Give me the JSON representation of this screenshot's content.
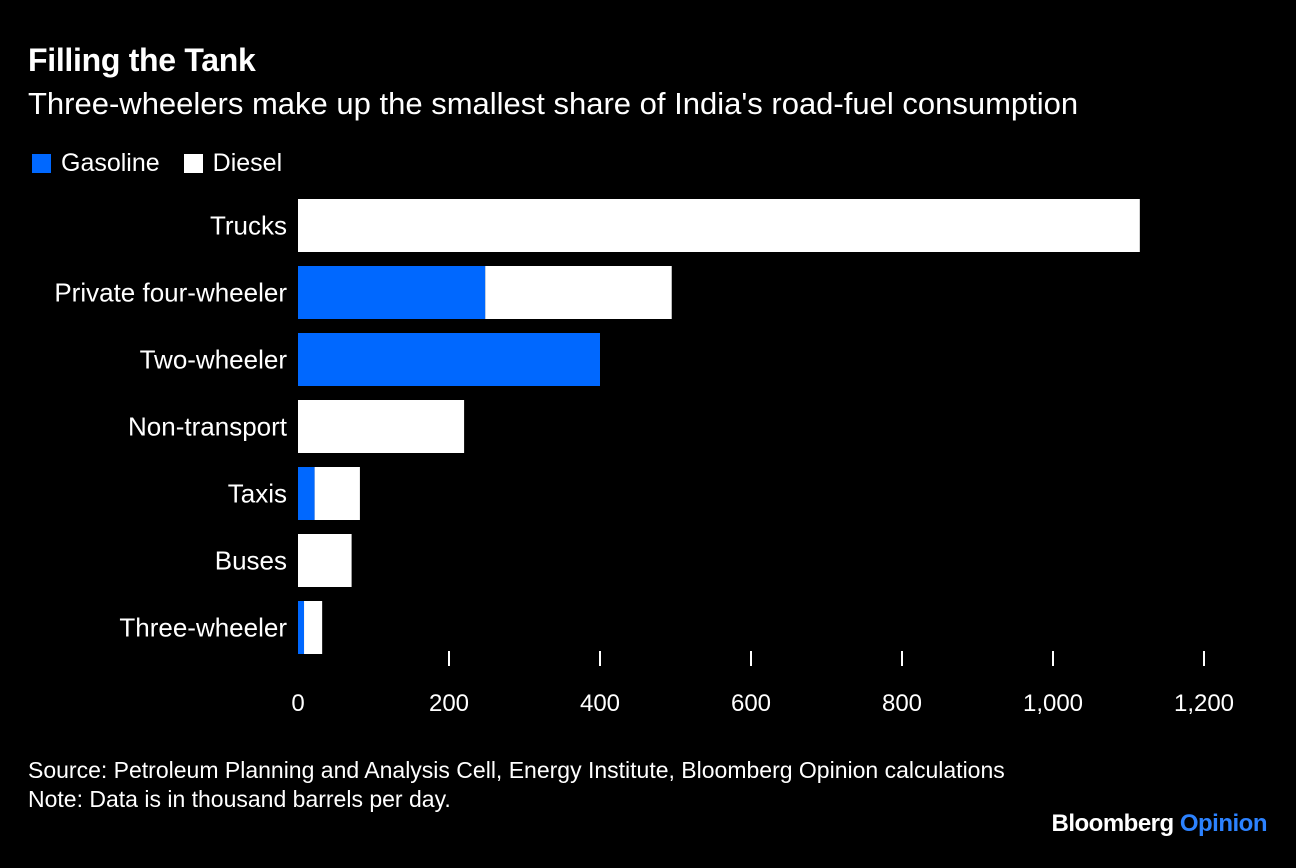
{
  "header": {
    "title": "Filling the Tank",
    "subtitle": "Three-wheelers make up the smallest share of India's road-fuel consumption"
  },
  "colors": {
    "gasoline": "#0068ff",
    "diesel": "#ffffff",
    "background": "#000000",
    "text": "#ffffff",
    "brand_accent": "#2c82ff"
  },
  "chart_data": {
    "type": "bar",
    "orientation": "horizontal",
    "stacked": true,
    "title": "Filling the Tank",
    "subtitle": "Three-wheelers make up the smallest share of India's road-fuel consumption",
    "categories": [
      "Trucks",
      "Private four-wheeler",
      "Two-wheeler",
      "Non-transport",
      "Taxis",
      "Buses",
      "Three-wheeler"
    ],
    "series": [
      {
        "name": "Gasoline",
        "values": [
          0,
          248,
          400,
          0,
          22,
          0,
          8
        ]
      },
      {
        "name": "Diesel",
        "values": [
          1115,
          247,
          0,
          220,
          60,
          71,
          24
        ]
      }
    ],
    "xlim": [
      0,
      1200
    ],
    "xticks": [
      0,
      200,
      400,
      600,
      800,
      1000,
      1200
    ],
    "xtick_labels": [
      "0",
      "200",
      "400",
      "600",
      "800",
      "1,000",
      "1,200"
    ],
    "xlabel": "",
    "ylabel": "",
    "grid": false,
    "legend_position": "top-left"
  },
  "footer": {
    "source": "Source: Petroleum Planning and Analysis Cell, Energy Institute, Bloomberg Opinion calculations",
    "note": "Note: Data is in thousand barrels per day."
  },
  "brand": {
    "name": "Bloomberg",
    "section": "Opinion"
  }
}
